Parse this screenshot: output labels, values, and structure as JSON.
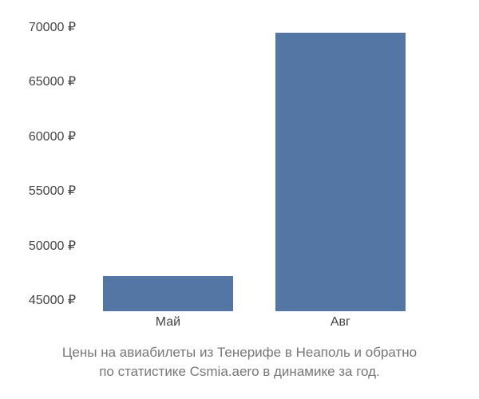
{
  "chart": {
    "type": "bar",
    "categories": [
      "Май",
      "Авг"
    ],
    "values": [
      47200,
      69500
    ],
    "bar_color": "#5376a4",
    "background_color": "#ffffff",
    "ylim": [
      44000,
      71000
    ],
    "yticks": [
      45000,
      50000,
      55000,
      60000,
      65000,
      70000
    ],
    "ytick_labels": [
      "45000 ₽",
      "50000 ₽",
      "55000 ₽",
      "60000 ₽",
      "65000 ₽",
      "70000 ₽"
    ],
    "ytick_color": "#444444",
    "xtick_color": "#444444",
    "label_fontsize": 16,
    "bar_positions_pct": [
      23,
      68
    ],
    "bar_width_pct": 34
  },
  "caption": {
    "line1": "Цены на авиабилеты из Тенерифе в Неаполь и обратно",
    "line2": "по статистике Csmia.aero в динамике за год.",
    "color": "#777777",
    "fontsize": 17
  }
}
